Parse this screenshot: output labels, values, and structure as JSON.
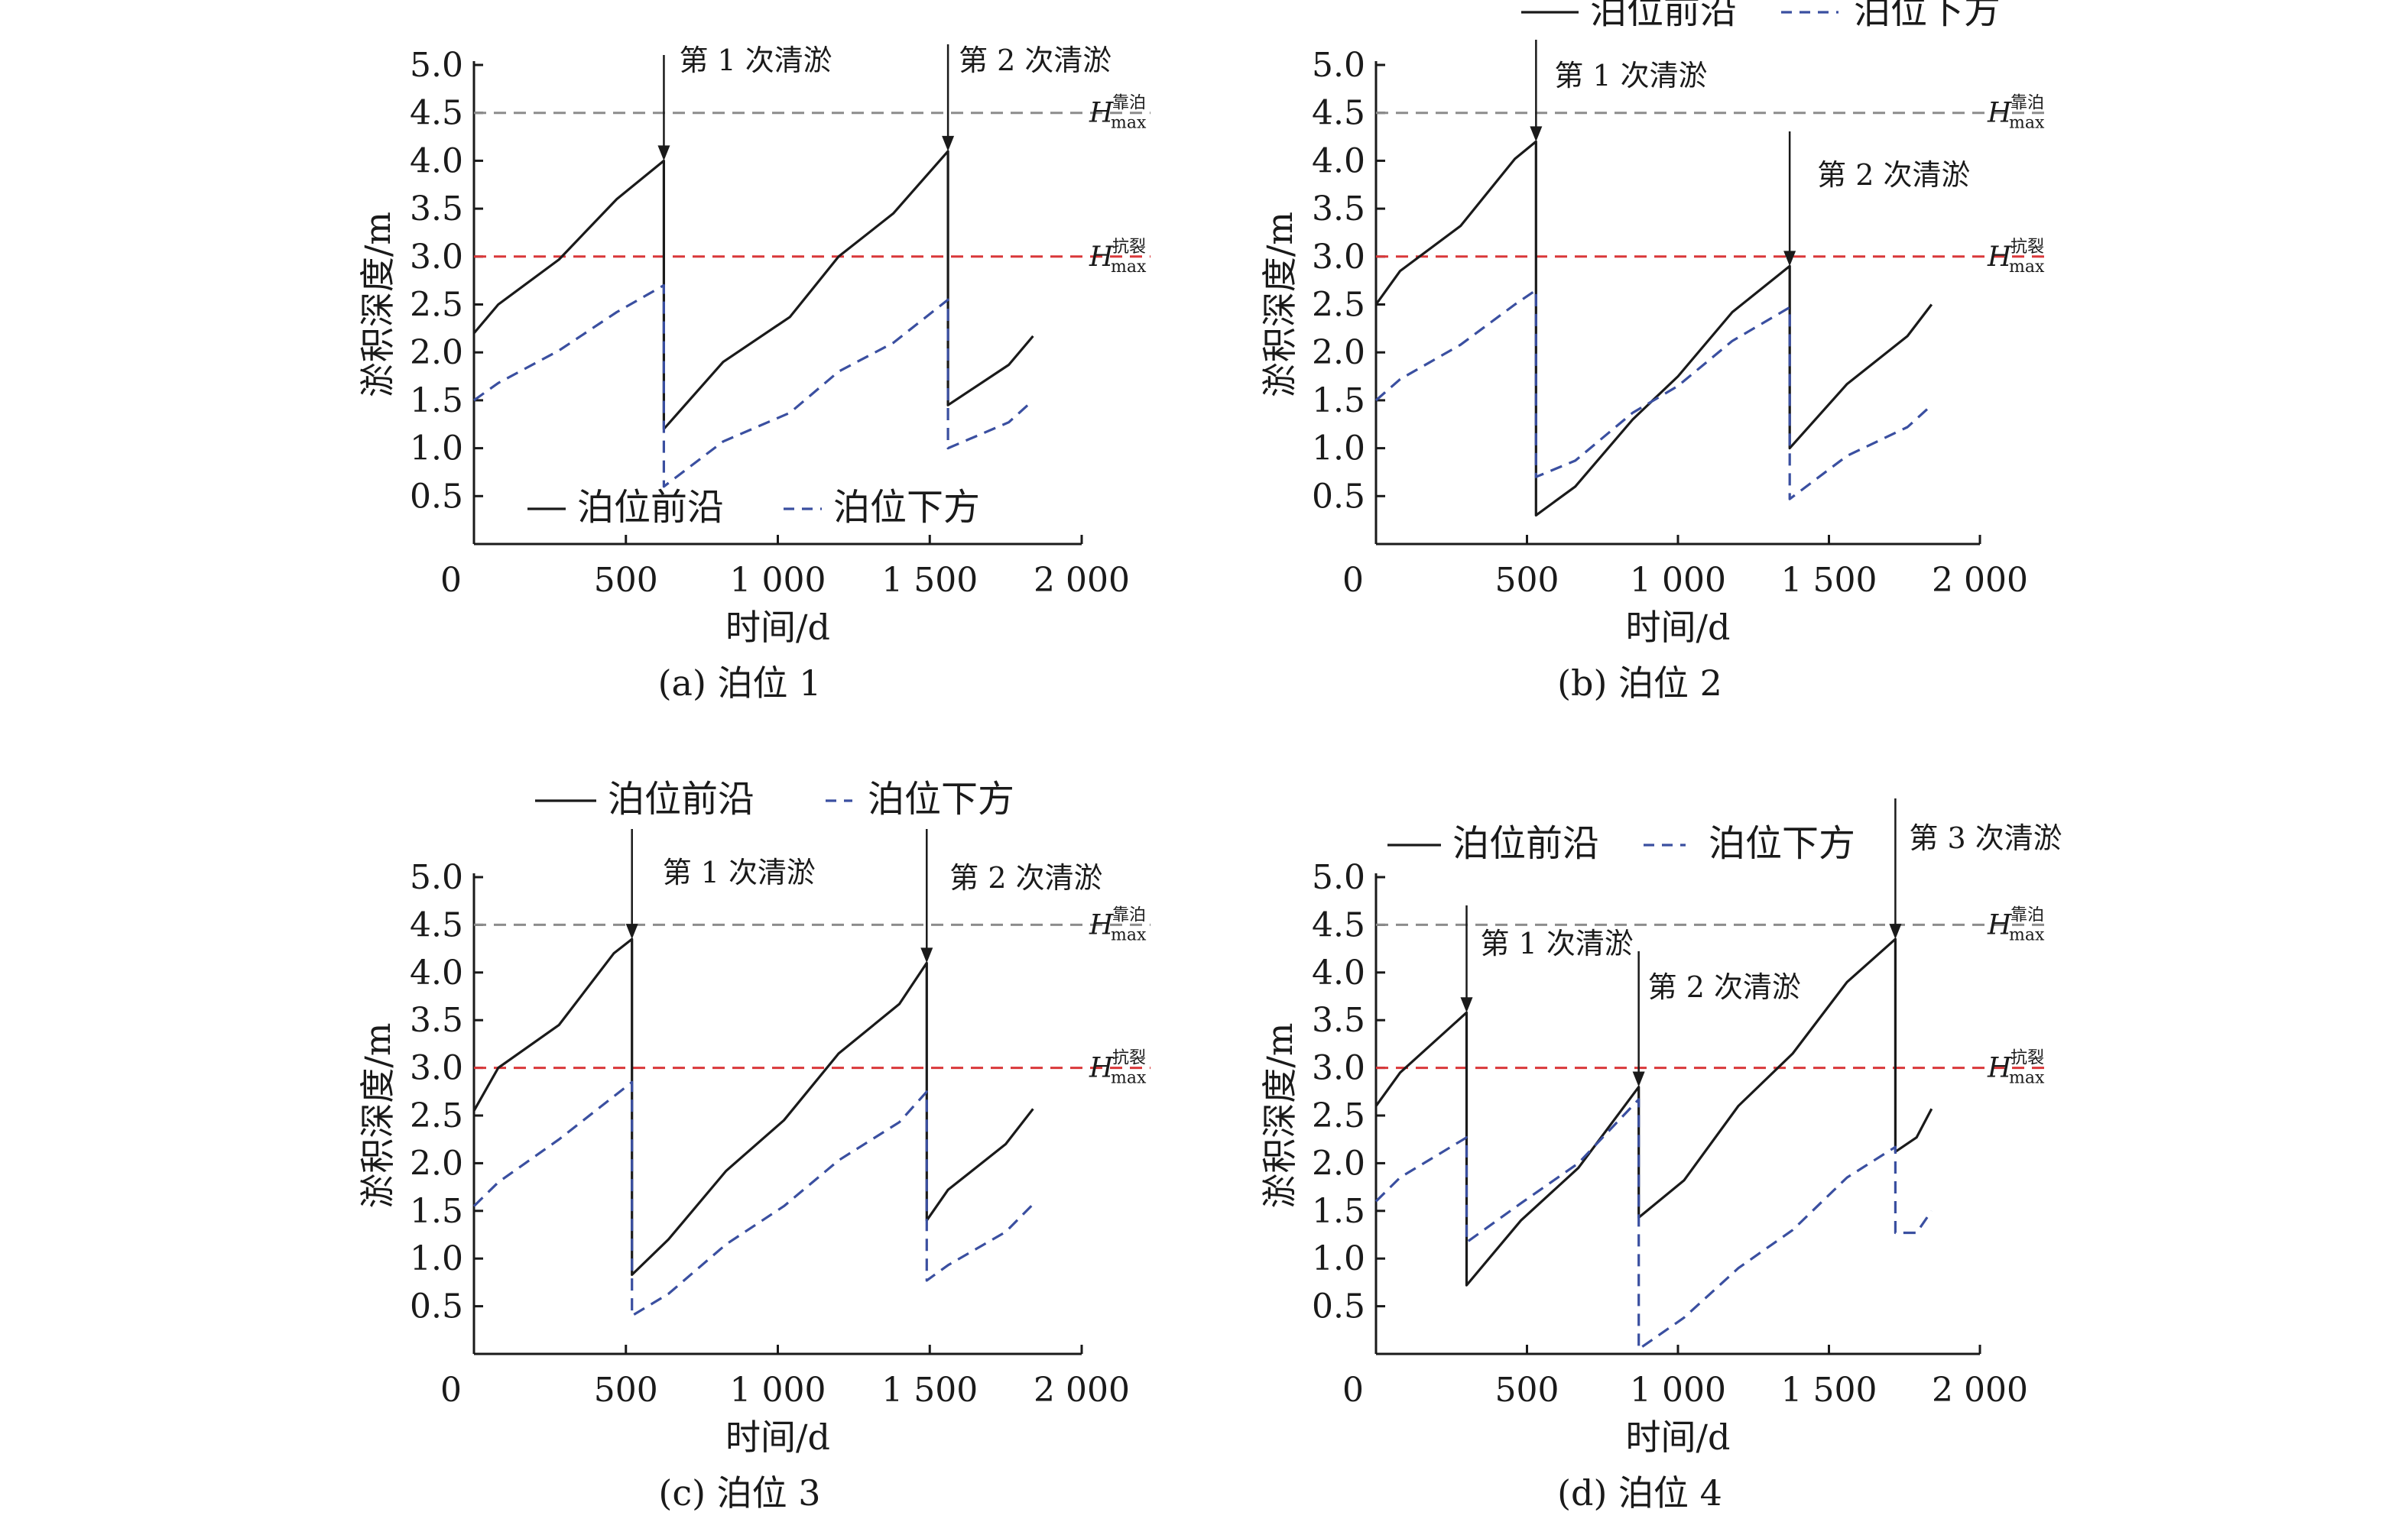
{
  "colors": {
    "front_line": "#1a1a1a",
    "below_line": "#3a4fa0",
    "h_berth_line": "#8c8c8c",
    "h_crack_line": "#d9383a",
    "axis": "#1a1a1a"
  },
  "h_labels": {
    "main": "H",
    "sub": "max",
    "berth_sup": "靠泊",
    "crack_sup": "抗裂"
  },
  "chart_data": [
    {
      "type": "line",
      "caption": "(a) 泊位 1",
      "xlabel": "时间/d",
      "ylabel": "淤积深度/m",
      "xlim": [
        0,
        2000
      ],
      "ylim": [
        0,
        5.0
      ],
      "x_ticks": [
        {
          "v": 0,
          "label": "0"
        },
        {
          "v": 500,
          "label": "500"
        },
        {
          "v": 1000,
          "label": "1 000"
        },
        {
          "v": 1500,
          "label": "1 500"
        },
        {
          "v": 2000,
          "label": "2 000"
        }
      ],
      "y_ticks": [
        {
          "v": 0.5,
          "label": "0.5"
        },
        {
          "v": 1.0,
          "label": "1.0"
        },
        {
          "v": 1.5,
          "label": "1.5"
        },
        {
          "v": 2.0,
          "label": "2.0"
        },
        {
          "v": 2.5,
          "label": "2.5"
        },
        {
          "v": 3.0,
          "label": "3.0"
        },
        {
          "v": 3.5,
          "label": "3.5"
        },
        {
          "v": 4.0,
          "label": "4.0"
        },
        {
          "v": 4.5,
          "label": "4.5"
        },
        {
          "v": 5.0,
          "label": "5.0"
        }
      ],
      "legend_position": "bottom",
      "series": [
        {
          "name": "泊位前沿",
          "style": "solid",
          "points": [
            [
              0,
              2.2
            ],
            [
              80,
              2.5
            ],
            [
              280,
              2.97
            ],
            [
              470,
              3.6
            ],
            [
              625,
              4.0
            ],
            [
              625,
              1.2
            ],
            [
              820,
              1.9
            ],
            [
              1040,
              2.37
            ],
            [
              1200,
              3.0
            ],
            [
              1380,
              3.45
            ],
            [
              1560,
              4.1
            ],
            [
              1560,
              1.45
            ],
            [
              1760,
              1.87
            ],
            [
              1840,
              2.17
            ]
          ]
        },
        {
          "name": "泊位下方",
          "style": "dashed",
          "points": [
            [
              0,
              1.5
            ],
            [
              80,
              1.68
            ],
            [
              280,
              2.02
            ],
            [
              470,
              2.42
            ],
            [
              625,
              2.7
            ],
            [
              625,
              0.6
            ],
            [
              820,
              1.07
            ],
            [
              1040,
              1.37
            ],
            [
              1200,
              1.8
            ],
            [
              1380,
              2.1
            ],
            [
              1560,
              2.55
            ],
            [
              1560,
              1.0
            ],
            [
              1760,
              1.27
            ],
            [
              1840,
              1.5
            ]
          ]
        }
      ],
      "reference_lines": [
        {
          "y": 4.5,
          "kind": "berth"
        },
        {
          "y": 3.0,
          "kind": "crack"
        }
      ],
      "annotations": [
        {
          "x": 625,
          "y": 4.0,
          "text": "第 1 次清淤"
        },
        {
          "x": 1560,
          "y": 4.1,
          "text": "第 2 次清淤"
        }
      ]
    },
    {
      "type": "line",
      "caption": "(b) 泊位 2",
      "xlabel": "时间/d",
      "ylabel": "淤积深度/m",
      "xlim": [
        0,
        2000
      ],
      "ylim": [
        0,
        5.0
      ],
      "x_ticks": [
        {
          "v": 0,
          "label": "0"
        },
        {
          "v": 500,
          "label": "500"
        },
        {
          "v": 1000,
          "label": "1 000"
        },
        {
          "v": 1500,
          "label": "1 500"
        },
        {
          "v": 2000,
          "label": "2 000"
        }
      ],
      "y_ticks": [
        {
          "v": 0.5,
          "label": "0.5"
        },
        {
          "v": 1.0,
          "label": "1.0"
        },
        {
          "v": 1.5,
          "label": "1.5"
        },
        {
          "v": 2.0,
          "label": "2.0"
        },
        {
          "v": 2.5,
          "label": "2.5"
        },
        {
          "v": 3.0,
          "label": "3.0"
        },
        {
          "v": 3.5,
          "label": "3.5"
        },
        {
          "v": 4.0,
          "label": "4.0"
        },
        {
          "v": 4.5,
          "label": "4.5"
        },
        {
          "v": 5.0,
          "label": "5.0"
        }
      ],
      "legend_position": "top",
      "series": [
        {
          "name": "泊位前沿",
          "style": "solid",
          "points": [
            [
              0,
              2.5
            ],
            [
              80,
              2.85
            ],
            [
              280,
              3.32
            ],
            [
              460,
              4.02
            ],
            [
              530,
              4.2
            ],
            [
              530,
              0.3
            ],
            [
              660,
              0.6
            ],
            [
              850,
              1.3
            ],
            [
              1000,
              1.75
            ],
            [
              1180,
              2.42
            ],
            [
              1370,
              2.9
            ],
            [
              1370,
              1.0
            ],
            [
              1560,
              1.67
            ],
            [
              1760,
              2.17
            ],
            [
              1840,
              2.5
            ]
          ]
        },
        {
          "name": "泊位下方",
          "style": "dashed",
          "points": [
            [
              0,
              1.5
            ],
            [
              80,
              1.72
            ],
            [
              280,
              2.08
            ],
            [
              460,
              2.5
            ],
            [
              530,
              2.65
            ],
            [
              530,
              0.7
            ],
            [
              660,
              0.87
            ],
            [
              850,
              1.37
            ],
            [
              1000,
              1.65
            ],
            [
              1180,
              2.12
            ],
            [
              1370,
              2.47
            ],
            [
              1370,
              0.47
            ],
            [
              1560,
              0.92
            ],
            [
              1760,
              1.22
            ],
            [
              1840,
              1.45
            ]
          ]
        }
      ],
      "reference_lines": [
        {
          "y": 4.5,
          "kind": "berth"
        },
        {
          "y": 3.0,
          "kind": "crack"
        }
      ],
      "annotations": [
        {
          "x": 530,
          "y": 4.2,
          "text": "第 1 次清淤"
        },
        {
          "x": 1370,
          "y": 2.9,
          "text": "第 2 次清淤"
        }
      ]
    },
    {
      "type": "line",
      "caption": "(c) 泊位 3",
      "xlabel": "时间/d",
      "ylabel": "淤积深度/m",
      "xlim": [
        0,
        2000
      ],
      "ylim": [
        0,
        5.0
      ],
      "x_ticks": [
        {
          "v": 0,
          "label": "0"
        },
        {
          "v": 500,
          "label": "500"
        },
        {
          "v": 1000,
          "label": "1 000"
        },
        {
          "v": 1500,
          "label": "1 500"
        },
        {
          "v": 2000,
          "label": "2 000"
        }
      ],
      "y_ticks": [
        {
          "v": 0.5,
          "label": "0.5"
        },
        {
          "v": 1.0,
          "label": "1.0"
        },
        {
          "v": 1.5,
          "label": "1.5"
        },
        {
          "v": 2.0,
          "label": "2.0"
        },
        {
          "v": 2.5,
          "label": "2.5"
        },
        {
          "v": 3.0,
          "label": "3.0"
        },
        {
          "v": 3.5,
          "label": "3.5"
        },
        {
          "v": 4.0,
          "label": "4.0"
        },
        {
          "v": 4.5,
          "label": "4.5"
        },
        {
          "v": 5.0,
          "label": "5.0"
        }
      ],
      "legend_position": "top",
      "series": [
        {
          "name": "泊位前沿",
          "style": "solid",
          "points": [
            [
              0,
              2.55
            ],
            [
              80,
              3.0
            ],
            [
              280,
              3.45
            ],
            [
              460,
              4.2
            ],
            [
              520,
              4.35
            ],
            [
              520,
              0.83
            ],
            [
              640,
              1.2
            ],
            [
              830,
              1.92
            ],
            [
              1020,
              2.45
            ],
            [
              1200,
              3.15
            ],
            [
              1400,
              3.67
            ],
            [
              1490,
              4.1
            ],
            [
              1490,
              1.4
            ],
            [
              1560,
              1.72
            ],
            [
              1750,
              2.2
            ],
            [
              1840,
              2.57
            ]
          ]
        },
        {
          "name": "泊位下方",
          "style": "dashed",
          "points": [
            [
              0,
              1.55
            ],
            [
              80,
              1.8
            ],
            [
              280,
              2.25
            ],
            [
              460,
              2.7
            ],
            [
              520,
              2.85
            ],
            [
              520,
              0.4
            ],
            [
              640,
              0.63
            ],
            [
              830,
              1.15
            ],
            [
              1020,
              1.55
            ],
            [
              1200,
              2.03
            ],
            [
              1400,
              2.43
            ],
            [
              1490,
              2.75
            ],
            [
              1490,
              0.77
            ],
            [
              1560,
              0.93
            ],
            [
              1750,
              1.28
            ],
            [
              1840,
              1.57
            ]
          ]
        }
      ],
      "reference_lines": [
        {
          "y": 4.5,
          "kind": "berth"
        },
        {
          "y": 3.0,
          "kind": "crack"
        }
      ],
      "annotations": [
        {
          "x": 520,
          "y": 4.35,
          "text": "第 1 次清淤"
        },
        {
          "x": 1490,
          "y": 4.1,
          "text": "第 2 次清淤"
        }
      ]
    },
    {
      "type": "line",
      "caption": "(d) 泊位 4",
      "xlabel": "时间/d",
      "ylabel": "淤积深度/m",
      "xlim": [
        0,
        2000
      ],
      "ylim": [
        0,
        5.0
      ],
      "x_ticks": [
        {
          "v": 0,
          "label": "0"
        },
        {
          "v": 500,
          "label": "500"
        },
        {
          "v": 1000,
          "label": "1 000"
        },
        {
          "v": 1500,
          "label": "1 500"
        },
        {
          "v": 2000,
          "label": "2 000"
        }
      ],
      "y_ticks": [
        {
          "v": 0.5,
          "label": "0.5"
        },
        {
          "v": 1.0,
          "label": "1.0"
        },
        {
          "v": 1.5,
          "label": "1.5"
        },
        {
          "v": 2.0,
          "label": "2.0"
        },
        {
          "v": 2.5,
          "label": "2.5"
        },
        {
          "v": 3.0,
          "label": "3.0"
        },
        {
          "v": 3.5,
          "label": "3.5"
        },
        {
          "v": 4.0,
          "label": "4.0"
        },
        {
          "v": 4.5,
          "label": "4.5"
        },
        {
          "v": 5.0,
          "label": "5.0"
        }
      ],
      "legend_position": "top",
      "series": [
        {
          "name": "泊位前沿",
          "style": "solid",
          "points": [
            [
              0,
              2.6
            ],
            [
              80,
              2.95
            ],
            [
              300,
              3.58
            ],
            [
              300,
              0.72
            ],
            [
              480,
              1.4
            ],
            [
              670,
              1.95
            ],
            [
              870,
              2.8
            ],
            [
              870,
              1.43
            ],
            [
              1020,
              1.82
            ],
            [
              1200,
              2.6
            ],
            [
              1380,
              3.15
            ],
            [
              1560,
              3.9
            ],
            [
              1720,
              4.35
            ],
            [
              1720,
              2.12
            ],
            [
              1790,
              2.27
            ],
            [
              1840,
              2.57
            ]
          ]
        },
        {
          "name": "泊位下方",
          "style": "dashed",
          "points": [
            [
              0,
              1.6
            ],
            [
              80,
              1.85
            ],
            [
              300,
              2.27
            ],
            [
              300,
              1.17
            ],
            [
              480,
              1.58
            ],
            [
              670,
              2.0
            ],
            [
              870,
              2.67
            ],
            [
              870,
              0.05
            ],
            [
              1020,
              0.38
            ],
            [
              1200,
              0.9
            ],
            [
              1380,
              1.3
            ],
            [
              1560,
              1.85
            ],
            [
              1720,
              2.17
            ],
            [
              1720,
              1.27
            ],
            [
              1790,
              1.27
            ],
            [
              1840,
              1.5
            ]
          ]
        }
      ],
      "reference_lines": [
        {
          "y": 4.5,
          "kind": "berth"
        },
        {
          "y": 3.0,
          "kind": "crack"
        }
      ],
      "annotations": [
        {
          "x": 300,
          "y": 3.58,
          "text": "第 1 次清淤"
        },
        {
          "x": 870,
          "y": 2.8,
          "text": "第 2 次清淤"
        },
        {
          "x": 1720,
          "y": 4.35,
          "text": "第 3 次清淤"
        }
      ]
    }
  ]
}
